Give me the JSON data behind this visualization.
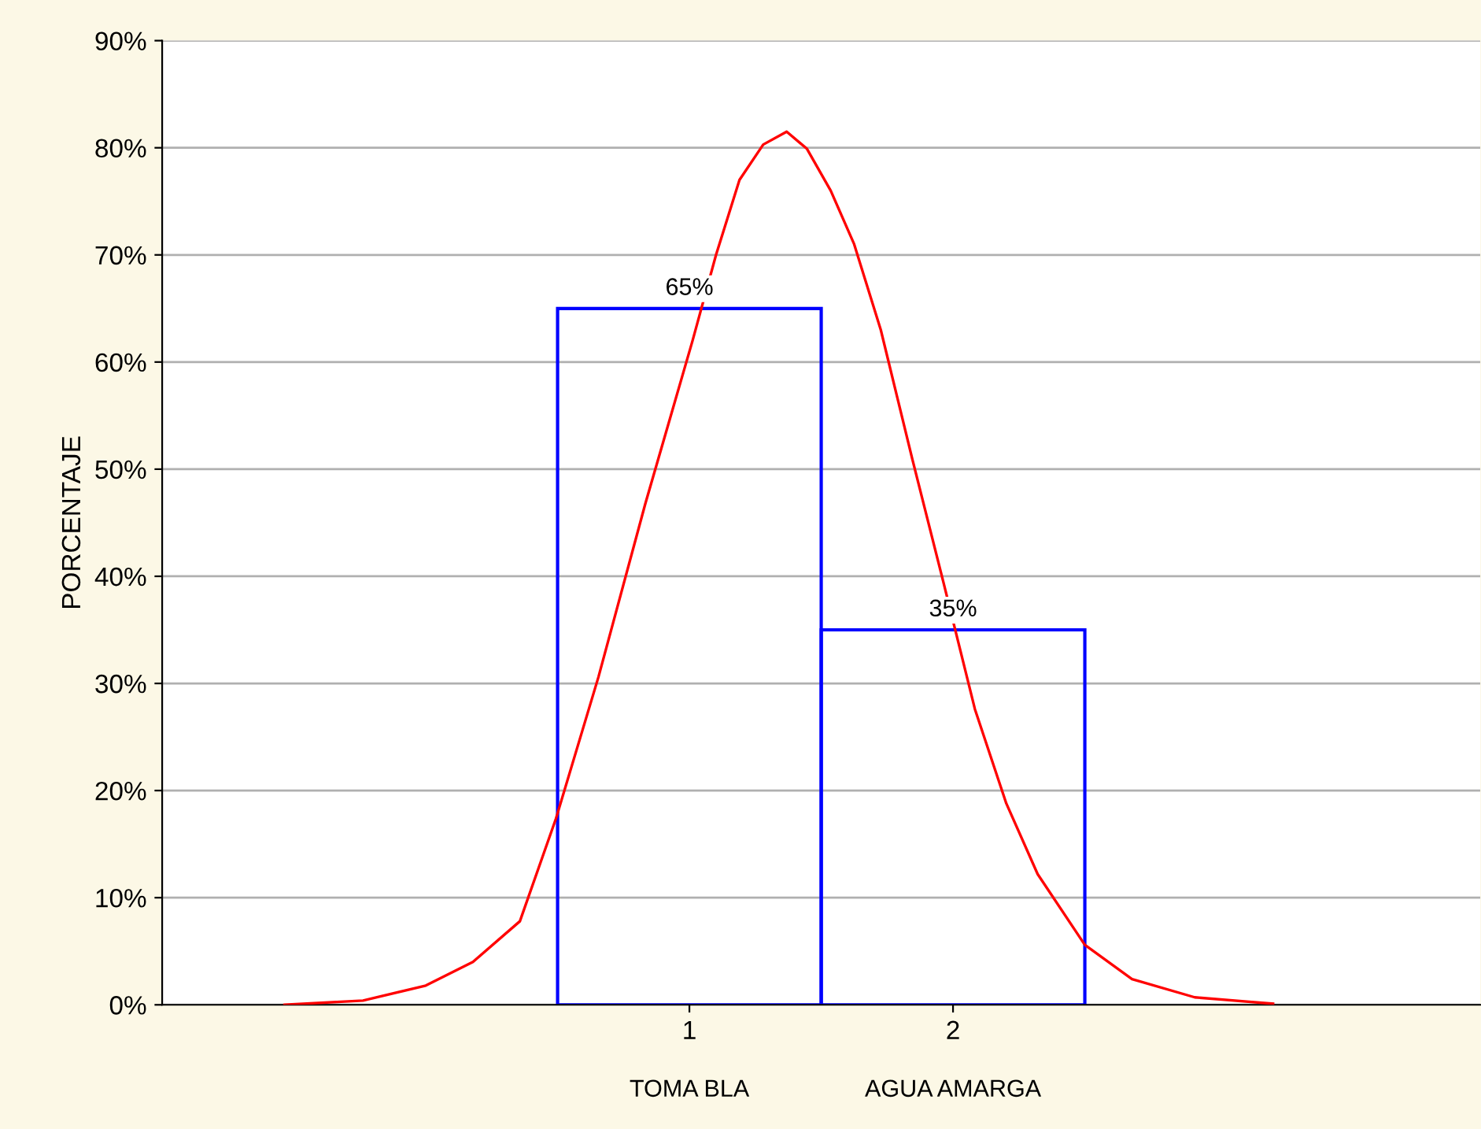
{
  "chart_data": {
    "type": "histogram",
    "ylabel": "PORCENTAJE",
    "bins": [
      0.5,
      1.5,
      2.5
    ],
    "values": [
      65,
      35
    ],
    "color": "#0000ff",
    "value_labels": [
      "65%",
      "35%"
    ],
    "series": [
      {
        "type": "line",
        "color": "#ff0000",
        "x": [
          -0.536,
          -0.238,
          0,
          0.179,
          0.357,
          0.494,
          0.655,
          0.833,
          1.012,
          1.101,
          1.19,
          1.28,
          1.369,
          1.446,
          1.536,
          1.625,
          1.726,
          1.845,
          1.964,
          2.083,
          2.202,
          2.321,
          2.5,
          2.679,
          2.917,
          3.214
        ],
        "values": [
          0,
          0.4,
          1.8,
          4,
          7.8,
          17.4,
          30.6,
          46.8,
          62,
          70,
          77,
          80.3,
          81.5,
          79.9,
          76,
          71,
          63,
          51,
          39.4,
          27.6,
          18.8,
          12.2,
          5.6,
          2.4,
          0.7,
          0.1
        ]
      }
    ],
    "xlim": [
      -1,
      4
    ],
    "xticks": [
      1,
      2
    ],
    "ylim": [
      0,
      90
    ],
    "yticks": [
      {
        "value": 0,
        "label": "0%"
      },
      {
        "value": 10,
        "label": "10%"
      },
      {
        "value": 20,
        "label": "20%"
      },
      {
        "value": 30,
        "label": "30%"
      },
      {
        "value": 40,
        "label": "40%"
      },
      {
        "value": 50,
        "label": "50%"
      },
      {
        "value": 60,
        "label": "60%"
      },
      {
        "value": 70,
        "label": "70%"
      },
      {
        "value": 80,
        "label": "80%"
      },
      {
        "value": 90,
        "label": "90%"
      }
    ],
    "grid": "y",
    "annotations": [
      "TOMA BLA",
      "AGUA AMARGA"
    ]
  }
}
